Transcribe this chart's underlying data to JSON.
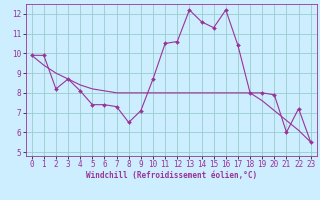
{
  "x": [
    0,
    1,
    2,
    3,
    4,
    5,
    6,
    7,
    8,
    9,
    10,
    11,
    12,
    13,
    14,
    15,
    16,
    17,
    18,
    19,
    20,
    21,
    22,
    23
  ],
  "y_main": [
    9.9,
    9.9,
    8.2,
    8.7,
    8.1,
    7.4,
    7.4,
    7.3,
    6.5,
    7.1,
    8.7,
    10.5,
    10.6,
    12.2,
    11.6,
    11.3,
    12.2,
    10.4,
    8.0,
    8.0,
    7.9,
    6.0,
    7.2,
    5.5
  ],
  "y_trend": [
    9.9,
    9.4,
    9.0,
    8.7,
    8.4,
    8.2,
    8.1,
    8.0,
    8.0,
    8.0,
    8.0,
    8.0,
    8.0,
    8.0,
    8.0,
    8.0,
    8.0,
    8.0,
    8.0,
    7.6,
    7.1,
    6.6,
    6.1,
    5.5
  ],
  "line_color": "#993399",
  "bg_color": "#cceeff",
  "grid_color": "#99cccc",
  "xlabel": "Windchill (Refroidissement éolien,°C)",
  "xlim": [
    -0.5,
    23.5
  ],
  "ylim": [
    4.8,
    12.5
  ],
  "yticks": [
    5,
    6,
    7,
    8,
    9,
    10,
    11,
    12
  ],
  "xticks": [
    0,
    1,
    2,
    3,
    4,
    5,
    6,
    7,
    8,
    9,
    10,
    11,
    12,
    13,
    14,
    15,
    16,
    17,
    18,
    19,
    20,
    21,
    22,
    23
  ],
  "tick_fontsize": 5.5,
  "xlabel_fontsize": 5.5
}
